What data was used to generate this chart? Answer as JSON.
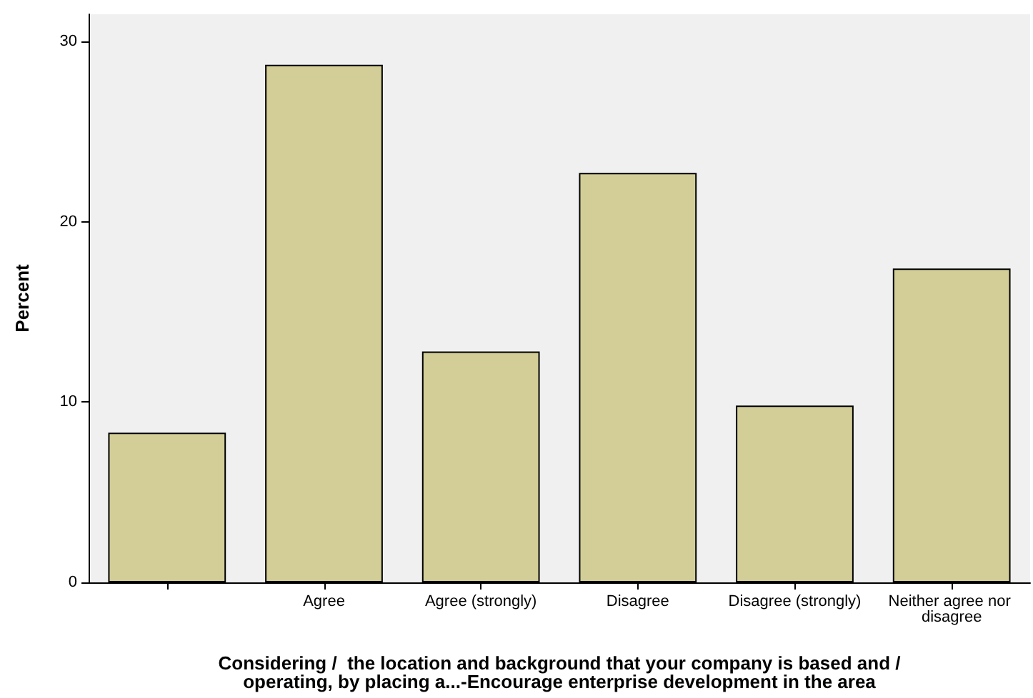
{
  "chart_data": {
    "type": "bar",
    "xlabel": "Considering /  the location and background that your company is based and /\noperating, by placing a...-Encourage enterprise development in the area",
    "ylabel": "Percent",
    "categories": [
      null,
      "Agree",
      "Agree (strongly)",
      "Disagree",
      "Disagree (strongly)",
      "Neither agree nor disagree"
    ],
    "values": [
      8.3,
      28.7,
      12.8,
      22.7,
      9.8,
      17.4
    ],
    "color": "#d3ce97",
    "ylim": [
      0,
      31.5
    ],
    "yticks": [
      0,
      10,
      20,
      30
    ],
    "grid": false
  }
}
